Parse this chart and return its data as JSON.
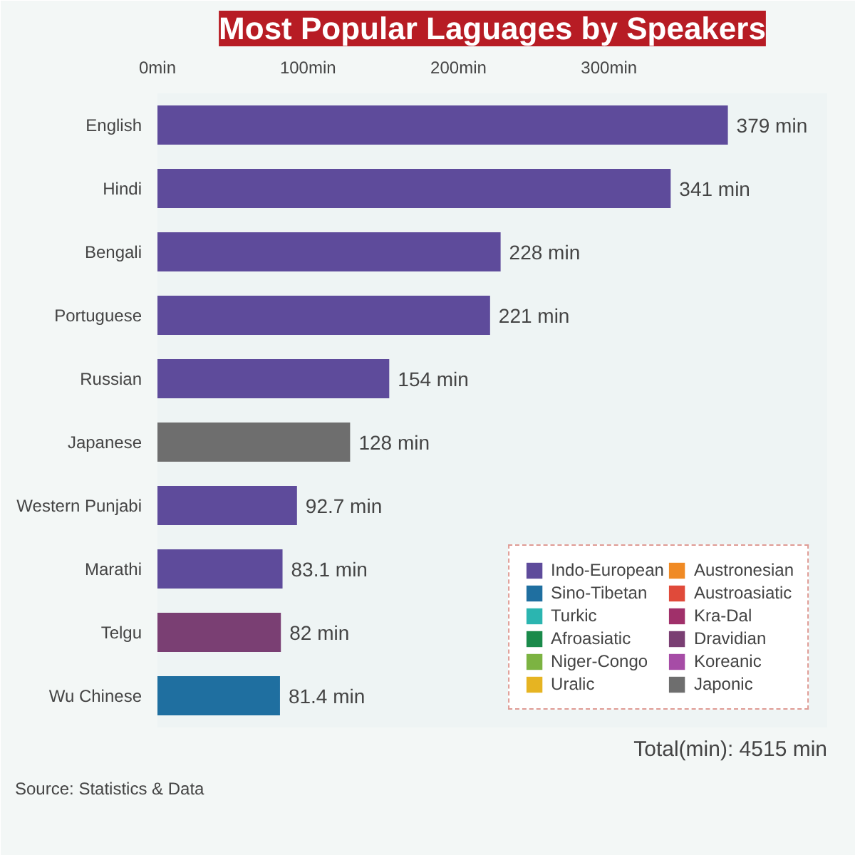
{
  "chart_data": {
    "type": "bar",
    "orientation": "horizontal",
    "title": "Most Popular Laguages by Speakers",
    "categories": [
      "English",
      "Hindi",
      "Bengali",
      "Portuguese",
      "Russian",
      "Japanese",
      "Western Punjabi",
      "Marathi",
      "Telgu",
      "Wu Chinese"
    ],
    "series": [
      {
        "name": "Indo-European",
        "color": "#5e4b9b",
        "values": [
          379,
          341,
          228,
          221,
          154,
          null,
          92.7,
          83.1,
          null,
          null
        ]
      },
      {
        "name": "Sino-Tibetan",
        "color": "#1f6fa0",
        "values": [
          null,
          null,
          null,
          null,
          null,
          null,
          null,
          null,
          null,
          81.4
        ]
      },
      {
        "name": "Turkic",
        "color": "#2bb5b0",
        "values": [
          null,
          null,
          null,
          null,
          null,
          null,
          null,
          null,
          null,
          null
        ]
      },
      {
        "name": "Afroasiatic",
        "color": "#1a8a4a",
        "values": [
          null,
          null,
          null,
          null,
          null,
          null,
          null,
          null,
          null,
          null
        ]
      },
      {
        "name": "Niger-Congo",
        "color": "#7cb342",
        "values": [
          null,
          null,
          null,
          null,
          null,
          null,
          null,
          null,
          null,
          null
        ]
      },
      {
        "name": "Uralic",
        "color": "#e6b422",
        "values": [
          null,
          null,
          null,
          null,
          null,
          null,
          null,
          null,
          null,
          null
        ]
      },
      {
        "name": "Austronesian",
        "color": "#f08a24",
        "values": [
          null,
          null,
          null,
          null,
          null,
          null,
          null,
          null,
          null,
          null
        ]
      },
      {
        "name": "Austroasiatic",
        "color": "#e04a3a",
        "values": [
          null,
          null,
          null,
          null,
          null,
          null,
          null,
          null,
          null,
          null
        ]
      },
      {
        "name": "Kra-Dal",
        "color": "#a0306a",
        "values": [
          null,
          null,
          null,
          null,
          null,
          null,
          null,
          null,
          null,
          null
        ]
      },
      {
        "name": "Dravidian",
        "color": "#7a3f73",
        "values": [
          null,
          null,
          null,
          null,
          null,
          null,
          null,
          null,
          82,
          null
        ]
      },
      {
        "name": "Koreanic",
        "color": "#a64ca6",
        "values": [
          null,
          null,
          null,
          null,
          null,
          null,
          null,
          null,
          null,
          null
        ]
      },
      {
        "name": "Japonic",
        "color": "#6e6e6e",
        "values": [
          null,
          null,
          null,
          null,
          null,
          128,
          null,
          null,
          null,
          null
        ]
      }
    ],
    "value_labels": [
      "379 min",
      "341 min",
      "228 min",
      "221 min",
      "154 min",
      "128 min",
      "92.7 min",
      "83.1 min",
      "82 min",
      "81.4 min"
    ],
    "xlim": [
      0,
      445
    ],
    "xticks": [
      {
        "value": 0,
        "label": "0min"
      },
      {
        "value": 100,
        "label": "100min"
      },
      {
        "value": 200,
        "label": "200min"
      },
      {
        "value": 300,
        "label": "300min"
      }
    ],
    "grid": false,
    "legend": "bottom right",
    "annotations": [
      "Total(min): 4515 min",
      "Source: Statistics & Data"
    ]
  }
}
